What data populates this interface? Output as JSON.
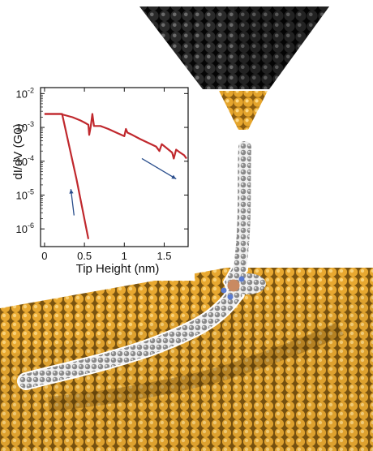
{
  "chart_data": {
    "type": "line",
    "xlabel": "Tip Height (nm)",
    "ylabel": "dI/dV (G0)",
    "yscale": "log",
    "xlim": [
      -0.05,
      1.8
    ],
    "ylim": [
      3e-07,
      0.015
    ],
    "x_ticks": [
      {
        "value": 0,
        "label": "0"
      },
      {
        "value": 0.5,
        "label": "0.5"
      },
      {
        "value": 1,
        "label": "1"
      },
      {
        "value": 1.5,
        "label": "1.5"
      }
    ],
    "y_ticks": [
      {
        "value": 0.01,
        "base": "10",
        "exp": "-2"
      },
      {
        "value": 0.001,
        "base": "10",
        "exp": "-3"
      },
      {
        "value": 0.0001,
        "base": "10",
        "exp": "-4"
      },
      {
        "value": 1e-05,
        "base": "10",
        "exp": "-5"
      },
      {
        "value": 1e-06,
        "base": "10",
        "exp": "-6"
      }
    ],
    "series": [
      {
        "color": "#c0282d",
        "x": [
          0.0,
          0.2,
          0.35,
          0.45,
          0.5,
          0.55,
          0.56,
          0.58,
          0.6,
          0.62,
          0.7,
          0.8,
          0.9,
          1.0,
          1.02,
          1.04,
          1.1,
          1.2,
          1.3,
          1.4,
          1.44,
          1.47,
          1.5,
          1.6,
          1.62,
          1.65,
          1.7,
          1.75,
          1.78
        ],
        "y": [
          0.0025,
          0.0025,
          0.002,
          0.0016,
          0.0014,
          0.0012,
          0.0006,
          0.0011,
          0.0025,
          0.0011,
          0.0011,
          0.0009,
          0.0007,
          0.00055,
          0.0009,
          0.0007,
          0.0006,
          0.00045,
          0.00035,
          0.00027,
          0.0002,
          0.00032,
          0.00028,
          0.00018,
          0.00012,
          0.00022,
          0.00018,
          0.00015,
          0.00012
        ]
      },
      {
        "color": "#c0282d",
        "x": [
          0.0,
          0.22,
          0.4,
          0.55
        ],
        "y": [
          0.0025,
          0.0025,
          3e-05,
          5e-07
        ]
      }
    ],
    "annotations": [
      {
        "type": "arrow",
        "color": "#2a4e8c",
        "from": [
          0.37,
          2.5e-06
        ],
        "to": [
          0.33,
          1.5e-05
        ]
      },
      {
        "type": "arrow",
        "color": "#2a4e8c",
        "from": [
          1.22,
          0.00012
        ],
        "to": [
          1.65,
          3e-05
        ]
      }
    ]
  },
  "scene": {
    "tip_color": "#1c1c1c",
    "tip_apex_color": "#e5a52c",
    "surface_color": "#e8a830",
    "molecule_color": "#9a9a9a",
    "metal_center_color": "#c98a62",
    "nitrogen_color": "#5a7bd0"
  }
}
